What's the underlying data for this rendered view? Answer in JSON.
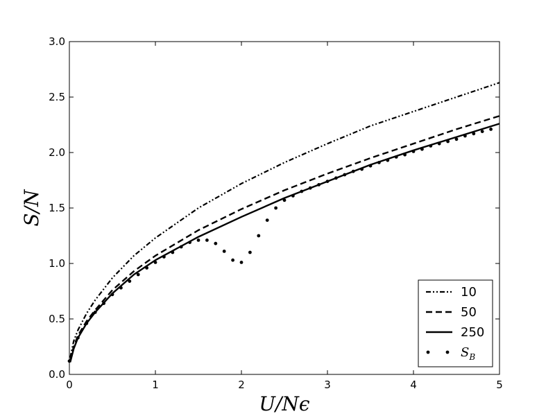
{
  "chart_data": {
    "type": "line",
    "xlabel": "U/Nϵ",
    "ylabel": "S/N",
    "xlim": [
      0,
      5
    ],
    "ylim": [
      0,
      3.0
    ],
    "xticks": [
      "0",
      "1",
      "2",
      "3",
      "4",
      "5"
    ],
    "yticks": [
      "0.0",
      "0.5",
      "1.0",
      "1.5",
      "2.0",
      "2.5",
      "3.0"
    ],
    "grid": false,
    "legend_position": "lower-right",
    "series": [
      {
        "name": "10",
        "style": "dash-dot-dot",
        "x": [
          0.01,
          0.05,
          0.1,
          0.2,
          0.3,
          0.5,
          0.75,
          1.0,
          1.5,
          2.0,
          2.5,
          3.0,
          3.5,
          4.0,
          4.5,
          5.0
        ],
        "y": [
          0.15,
          0.3,
          0.4,
          0.55,
          0.67,
          0.87,
          1.07,
          1.23,
          1.5,
          1.72,
          1.91,
          2.08,
          2.24,
          2.37,
          2.5,
          2.63
        ]
      },
      {
        "name": "50",
        "style": "dashed",
        "x": [
          0.01,
          0.05,
          0.1,
          0.2,
          0.3,
          0.5,
          0.75,
          1.0,
          1.5,
          2.0,
          2.5,
          3.0,
          3.5,
          4.0,
          4.5,
          5.0
        ],
        "y": [
          0.12,
          0.25,
          0.35,
          0.48,
          0.58,
          0.76,
          0.93,
          1.07,
          1.3,
          1.49,
          1.66,
          1.81,
          1.95,
          2.08,
          2.21,
          2.33
        ]
      },
      {
        "name": "250",
        "style": "solid",
        "x": [
          0.01,
          0.05,
          0.1,
          0.2,
          0.3,
          0.5,
          0.75,
          1.0,
          1.5,
          2.0,
          2.5,
          3.0,
          3.5,
          4.0,
          4.5,
          5.0
        ],
        "y": [
          0.11,
          0.23,
          0.33,
          0.46,
          0.56,
          0.73,
          0.9,
          1.03,
          1.24,
          1.42,
          1.59,
          1.74,
          1.89,
          2.02,
          2.14,
          2.26
        ]
      },
      {
        "name": "S_B",
        "style": "dotted-markers",
        "x": [
          0.0,
          0.1,
          0.2,
          0.3,
          0.4,
          0.5,
          0.6,
          0.7,
          0.8,
          0.9,
          1.0,
          1.1,
          1.2,
          1.3,
          1.4,
          1.5,
          1.6,
          1.7,
          1.8,
          1.9,
          2.0,
          2.1,
          2.2,
          2.3,
          2.4,
          2.5,
          2.6,
          2.7,
          2.8,
          2.9,
          3.0,
          3.1,
          3.2,
          3.3,
          3.4,
          3.5,
          3.6,
          3.7,
          3.8,
          3.9,
          4.0,
          4.1,
          4.2,
          4.3,
          4.4,
          4.5,
          4.6,
          4.7,
          4.8,
          4.9
        ],
        "y": [
          0.12,
          0.33,
          0.46,
          0.56,
          0.64,
          0.72,
          0.78,
          0.84,
          0.9,
          0.96,
          1.01,
          1.06,
          1.1,
          1.15,
          1.19,
          1.21,
          1.21,
          1.18,
          1.11,
          1.03,
          1.01,
          1.1,
          1.25,
          1.39,
          1.5,
          1.57,
          1.61,
          1.65,
          1.68,
          1.71,
          1.74,
          1.77,
          1.8,
          1.83,
          1.85,
          1.88,
          1.91,
          1.93,
          1.96,
          1.98,
          2.01,
          2.03,
          2.06,
          2.08,
          2.1,
          2.12,
          2.15,
          2.17,
          2.19,
          2.21
        ]
      }
    ]
  }
}
